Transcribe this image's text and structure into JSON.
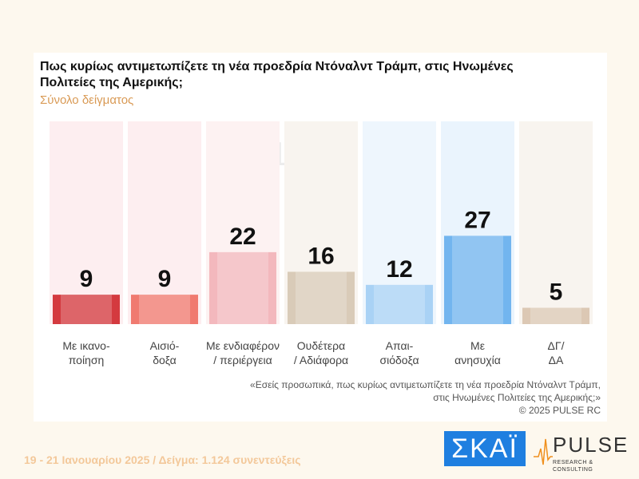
{
  "chart_data": {
    "type": "bar",
    "title": "Πως κυρίως αντιμετωπίζετε τη νέα προεδρία Ντόναλντ Τράμπ, στις Ηνωμένες Πολιτείες της Αμερικής;",
    "subtitle": "Σύνολο δείγματος",
    "categories": [
      [
        "Με ικανο-",
        "ποίηση"
      ],
      [
        "Αισιό-",
        "δοξα"
      ],
      [
        "Με ενδιαφέρον",
        "/ περιέργεια"
      ],
      [
        "Ουδέτερα",
        "/ Αδιάφορα"
      ],
      [
        "Απαι-",
        "σιόδοξα"
      ],
      [
        "Με",
        "ανησυχία"
      ],
      [
        "ΔΓ/",
        "ΔΑ"
      ]
    ],
    "values": [
      9,
      9,
      22,
      16,
      12,
      27,
      5
    ],
    "colors": [
      "#d43a3f",
      "#f07a70",
      "#f3b8bd",
      "#d9cbb8",
      "#a9d2f5",
      "#72b5ef",
      "#dcc8b4"
    ],
    "background_colors": [
      "#fdeef0",
      "#fdeef0",
      "#fdf2f2",
      "#f8f4ef",
      "#eef6fd",
      "#eaf4fd",
      "#f8f4ef"
    ],
    "ylim": [
      0,
      62
    ]
  },
  "note": {
    "line1": "«Εσείς προσωπικά, πως κυρίως αντιμετωπίζετε τη νέα προεδρία Ντόναλντ Τράμπ,",
    "line2": "στις Ηνωμένες Πολιτείες της Αμερικής;»",
    "copyright": "©  2025  PULSE RC"
  },
  "footer": "19 - 21 Ιανουαρίου 2025  /  Δείγμα:  1.124 συνεντεύξεις",
  "logos": {
    "skai": "ΣΚΑΪ",
    "pulse": "PULSE",
    "pulse_tagline": "RESEARCH & CONSULTING",
    "watermark": "PULSE"
  }
}
